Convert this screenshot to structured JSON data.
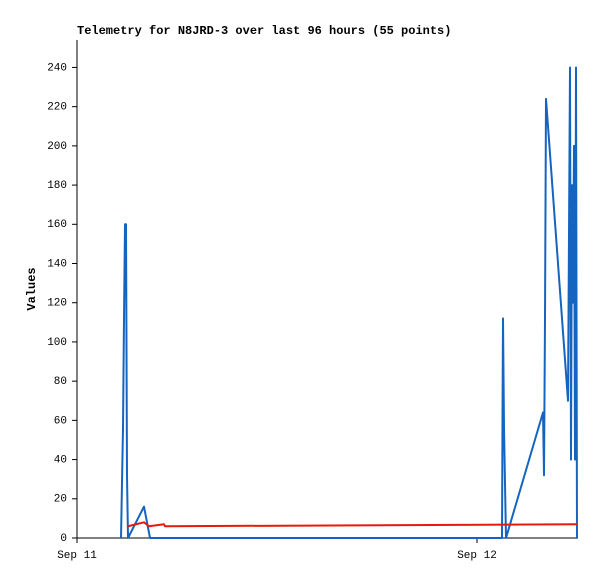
{
  "chart_data": {
    "type": "line",
    "title": "Telemetry for N8JRD-3 over last 96 hours (55 points)",
    "y_label": "Values",
    "x_ticks_note": null,
    "series": [
      {
        "color": "#1565c0",
        "x": [
          0.11,
          0.115,
          0.1175,
          0.12,
          0.1225,
          0.125,
          0.1275,
          0.1675,
          0.1825,
          1.0625,
          1.064,
          1.065,
          1.0675,
          1.0725,
          1.165,
          1.1675,
          1.17,
          1.1725,
          1.2275,
          1.2325,
          1.235,
          1.2375,
          1.24,
          1.2425,
          1.245,
          1.2475,
          1.25
        ],
        "values": [
          0,
          56,
          112,
          160,
          160,
          32,
          0,
          16,
          0,
          0,
          72,
          112,
          56,
          0,
          64,
          32,
          112,
          224,
          70,
          240,
          40,
          180,
          120,
          200,
          40,
          240,
          0
        ]
      },
      {
        "color": "#e8180c",
        "x": [
          0.1275,
          0.1675,
          0.18,
          0.2175,
          0.22,
          1.25
        ],
        "values": [
          6,
          8,
          6,
          7,
          6,
          7
        ]
      }
    ],
    "xlim": [
      0,
      1.25
    ],
    "xticks": [
      {
        "value": 0,
        "label": "Sep 11"
      },
      {
        "value": 1,
        "label": "Sep 12"
      }
    ],
    "ylim": [
      0,
      254
    ],
    "yticks": [
      0,
      20,
      40,
      60,
      80,
      100,
      120,
      140,
      160,
      180,
      200,
      220,
      240
    ]
  }
}
